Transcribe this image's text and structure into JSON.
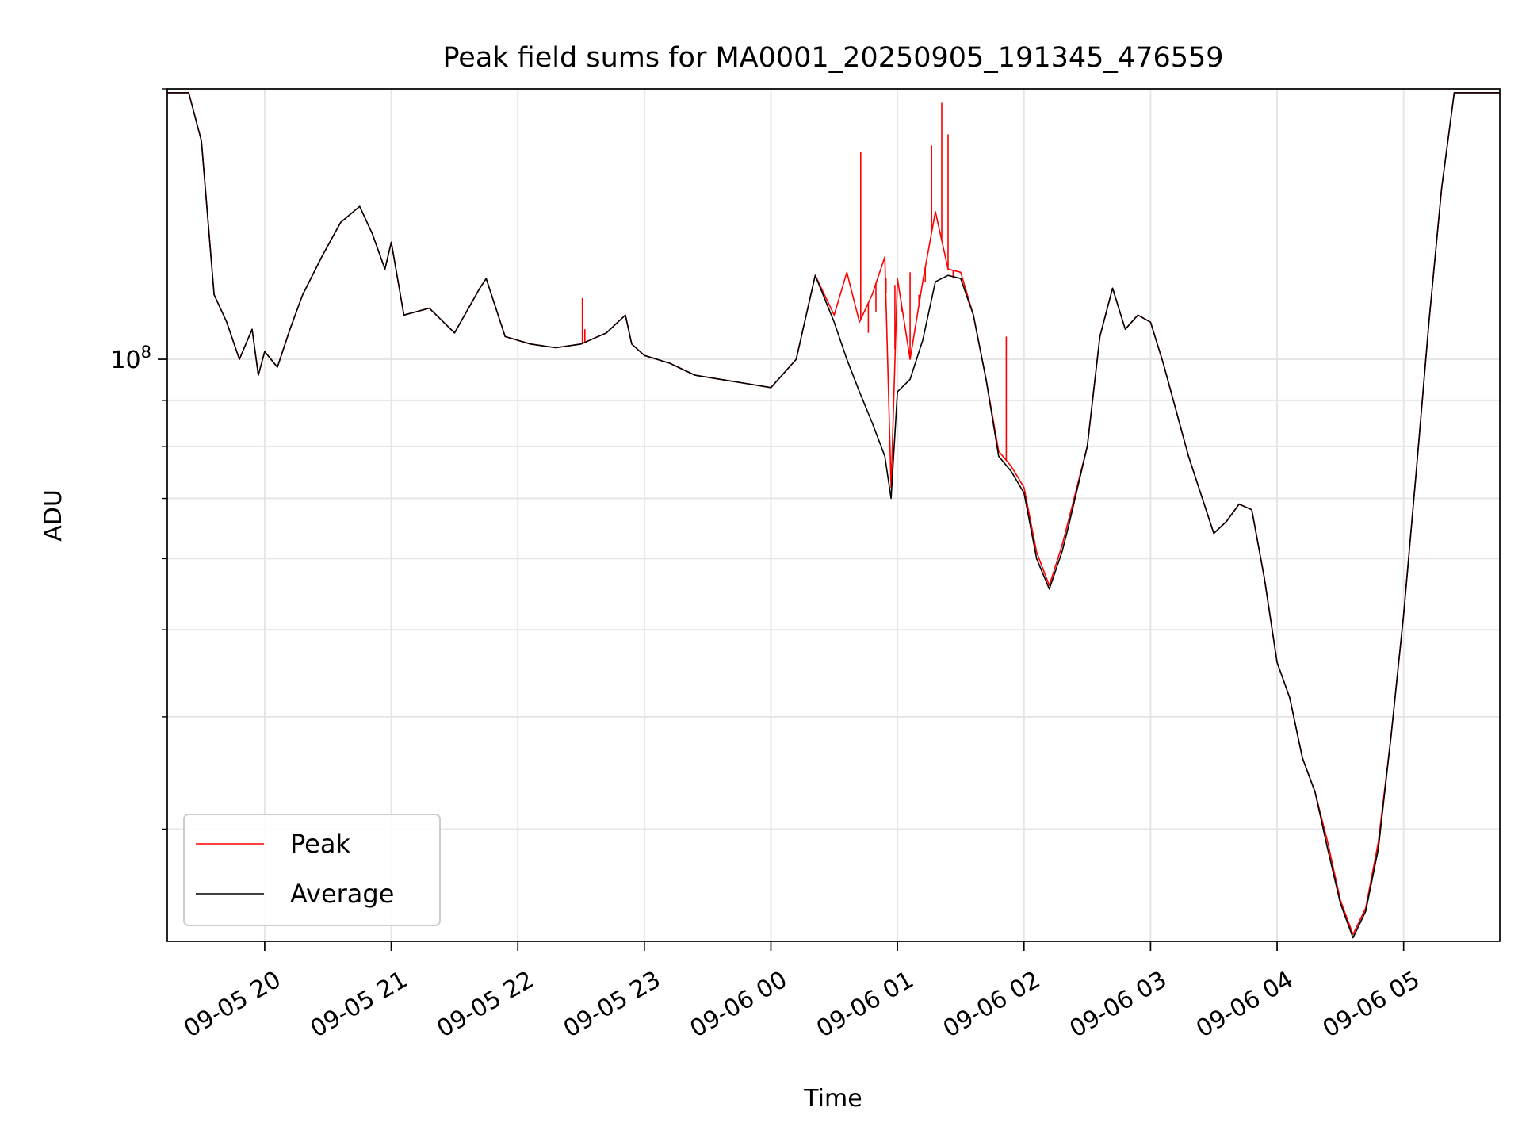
{
  "chart_data": {
    "type": "line",
    "title": "Peak field sums for MA0001_20250905_191345_476559",
    "xlabel": "Time",
    "ylabel": "ADU",
    "yscale": "log",
    "ylim": [
      22500000,
      200000000
    ],
    "xlim_hours": [
      19.23,
      29.76
    ],
    "x_unit": "hours after 2025-09-05 00:00",
    "grid": true,
    "legend_position": "lower-left",
    "x_ticks": [
      {
        "value": 20,
        "label": "09-05 20"
      },
      {
        "value": 21,
        "label": "09-05 21"
      },
      {
        "value": 22,
        "label": "09-05 22"
      },
      {
        "value": 23,
        "label": "09-05 23"
      },
      {
        "value": 24,
        "label": "09-06 00"
      },
      {
        "value": 25,
        "label": "09-06 01"
      },
      {
        "value": 26,
        "label": "09-06 02"
      },
      {
        "value": 27,
        "label": "09-06 03"
      },
      {
        "value": 28,
        "label": "09-06 04"
      },
      {
        "value": 29,
        "label": "09-06 05"
      }
    ],
    "y_major_ticks": [
      {
        "value": 100000000,
        "base": "10",
        "exp": "8"
      }
    ],
    "y_minor_ticks": [
      30000000,
      40000000,
      50000000,
      60000000,
      70000000,
      80000000,
      90000000,
      200000000
    ],
    "series": [
      {
        "name": "Peak",
        "color": "#ff0000",
        "x": [
          19.23,
          19.4,
          19.5,
          19.6,
          19.7,
          19.8,
          19.9,
          19.95,
          20.0,
          20.1,
          20.2,
          20.3,
          20.45,
          20.6,
          20.75,
          20.85,
          20.95,
          21.0,
          21.1,
          21.3,
          21.5,
          21.7,
          21.75,
          21.9,
          22.1,
          22.3,
          22.5,
          22.7,
          22.85,
          22.9,
          23.0,
          23.2,
          23.4,
          23.6,
          23.8,
          24.0,
          24.2,
          24.35,
          24.5,
          24.6,
          24.7,
          24.8,
          24.9,
          24.95,
          25.0,
          25.1,
          25.2,
          25.3,
          25.4,
          25.5,
          25.6,
          25.7,
          25.8,
          25.9,
          26.0,
          26.1,
          26.2,
          26.3,
          26.35,
          26.5,
          26.6,
          26.7,
          26.8,
          26.9,
          27.0,
          27.1,
          27.3,
          27.5,
          27.6,
          27.7,
          27.8,
          27.9,
          28.0,
          28.1,
          28.2,
          28.3,
          28.4,
          28.5,
          28.6,
          28.7,
          28.8,
          28.9,
          29.0,
          29.1,
          29.2,
          29.3,
          29.4,
          29.5,
          29.6,
          29.76
        ],
        "y": [
          198000000,
          198000000,
          175000000,
          118000000,
          110000000,
          100000000,
          108000000,
          96000000,
          102000000,
          98000000,
          108000000,
          118000000,
          130000000,
          142000000,
          148000000,
          138000000,
          126000000,
          135000000,
          112000000,
          114000000,
          107000000,
          120000000,
          123000000,
          106000000,
          104000000,
          103000000,
          104000000,
          107000000,
          112000000,
          104000000,
          101000000,
          99000000,
          96000000,
          95000000,
          94000000,
          93000000,
          100000000,
          124000000,
          112000000,
          125000000,
          110000000,
          118000000,
          130000000,
          72000000,
          123000000,
          100000000,
          122000000,
          146000000,
          126000000,
          125000000,
          112000000,
          95000000,
          79000000,
          76000000,
          72000000,
          61000000,
          56000000,
          62000000,
          66000000,
          80000000,
          106000000,
          120000000,
          108000000,
          112000000,
          110000000,
          99000000,
          78000000,
          64000000,
          66000000,
          69000000,
          68000000,
          57000000,
          46000000,
          42000000,
          36000000,
          33000000,
          29000000,
          25000000,
          22900000,
          24500000,
          29000000,
          38000000,
          52000000,
          75000000,
          110000000,
          155000000,
          198000000,
          198000000,
          198000000,
          198000000
        ],
        "spikes": [
          {
            "x": 22.51,
            "y": 117000000
          },
          {
            "x": 22.53,
            "y": 108000000
          },
          {
            "x": 24.71,
            "y": 170000000
          },
          {
            "x": 24.77,
            "y": 107000000
          },
          {
            "x": 24.83,
            "y": 113000000
          },
          {
            "x": 24.91,
            "y": 123000000
          },
          {
            "x": 24.98,
            "y": 121000000
          },
          {
            "x": 25.03,
            "y": 113000000
          },
          {
            "x": 25.1,
            "y": 125000000
          },
          {
            "x": 25.17,
            "y": 118000000
          },
          {
            "x": 25.22,
            "y": 122000000
          },
          {
            "x": 25.27,
            "y": 173000000
          },
          {
            "x": 25.35,
            "y": 193000000
          },
          {
            "x": 25.4,
            "y": 178000000
          },
          {
            "x": 25.44,
            "y": 123000000
          },
          {
            "x": 25.86,
            "y": 106000000
          }
        ]
      },
      {
        "name": "Average",
        "color": "#000000",
        "x": [
          19.23,
          19.4,
          19.5,
          19.6,
          19.7,
          19.8,
          19.9,
          19.95,
          20.0,
          20.1,
          20.2,
          20.3,
          20.45,
          20.6,
          20.75,
          20.85,
          20.95,
          21.0,
          21.1,
          21.3,
          21.5,
          21.7,
          21.75,
          21.9,
          22.1,
          22.3,
          22.5,
          22.7,
          22.85,
          22.9,
          23.0,
          23.2,
          23.4,
          23.6,
          23.8,
          24.0,
          24.2,
          24.35,
          24.5,
          24.6,
          24.7,
          24.8,
          24.9,
          24.95,
          25.0,
          25.1,
          25.2,
          25.3,
          25.4,
          25.5,
          25.6,
          25.7,
          25.8,
          25.9,
          26.0,
          26.1,
          26.2,
          26.3,
          26.35,
          26.5,
          26.6,
          26.7,
          26.8,
          26.9,
          27.0,
          27.1,
          27.3,
          27.5,
          27.6,
          27.7,
          27.8,
          27.9,
          28.0,
          28.1,
          28.2,
          28.3,
          28.4,
          28.5,
          28.6,
          28.7,
          28.8,
          28.9,
          29.0,
          29.1,
          29.2,
          29.3,
          29.4,
          29.5,
          29.6,
          29.76
        ],
        "y": [
          198000000,
          198000000,
          175000000,
          118000000,
          110000000,
          100000000,
          108000000,
          96000000,
          102000000,
          98000000,
          108000000,
          118000000,
          130000000,
          142000000,
          148000000,
          138000000,
          126000000,
          135000000,
          112000000,
          114000000,
          107000000,
          120000000,
          123000000,
          106000000,
          104000000,
          103000000,
          104000000,
          107000000,
          112000000,
          104000000,
          101000000,
          99000000,
          96000000,
          95000000,
          94000000,
          93000000,
          100000000,
          124000000,
          110000000,
          100000000,
          92000000,
          85000000,
          78000000,
          70000000,
          92000000,
          95000000,
          105000000,
          122000000,
          124000000,
          123000000,
          112000000,
          95000000,
          78000000,
          75000000,
          71000000,
          60000000,
          55500000,
          61000000,
          65000000,
          80000000,
          106000000,
          120000000,
          108000000,
          112000000,
          110000000,
          99000000,
          78000000,
          64000000,
          66000000,
          69000000,
          68000000,
          57000000,
          46000000,
          42000000,
          36000000,
          33000000,
          28500000,
          24800000,
          22700000,
          24300000,
          28500000,
          38000000,
          52000000,
          75000000,
          110000000,
          155000000,
          198000000,
          198000000,
          198000000,
          198000000
        ]
      }
    ]
  }
}
